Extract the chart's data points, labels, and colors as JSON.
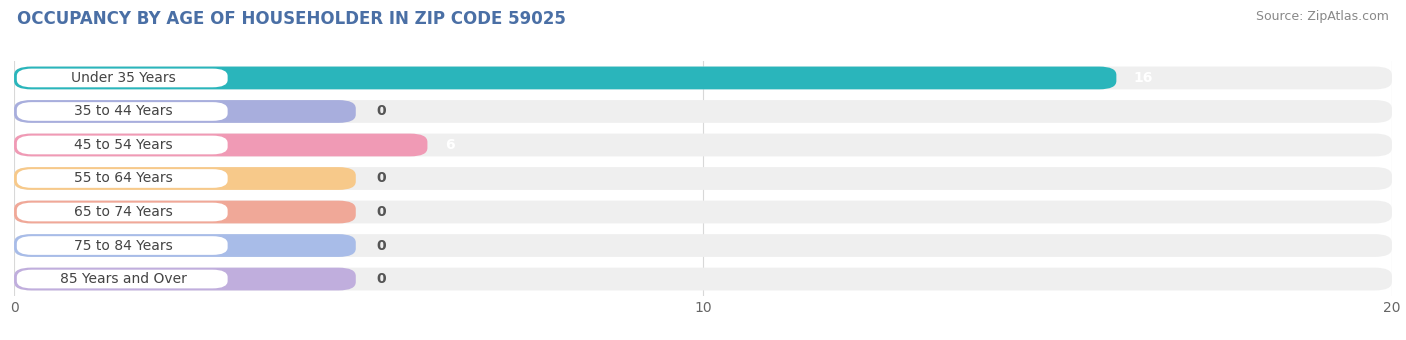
{
  "title": "OCCUPANCY BY AGE OF HOUSEHOLDER IN ZIP CODE 59025",
  "source": "Source: ZipAtlas.com",
  "categories": [
    "Under 35 Years",
    "35 to 44 Years",
    "45 to 54 Years",
    "55 to 64 Years",
    "65 to 74 Years",
    "75 to 84 Years",
    "85 Years and Over"
  ],
  "values": [
    16,
    0,
    6,
    0,
    0,
    0,
    0
  ],
  "bar_colors": [
    "#2ab5bb",
    "#a8aedd",
    "#f09ab5",
    "#f7c98a",
    "#f0a898",
    "#a8bce8",
    "#c0aedd"
  ],
  "xlim": [
    0,
    20
  ],
  "xticks": [
    0,
    10,
    20
  ],
  "label_color_nonzero": "#ffffff",
  "label_color_zero": "#555555",
  "title_fontsize": 12,
  "source_fontsize": 9,
  "tick_fontsize": 10,
  "bar_label_fontsize": 10,
  "cat_label_fontsize": 10,
  "background_color": "#ffffff",
  "row_bg_color": "#efefef",
  "white_pill_color": "#ffffff",
  "grid_color": "#d8d8d8"
}
